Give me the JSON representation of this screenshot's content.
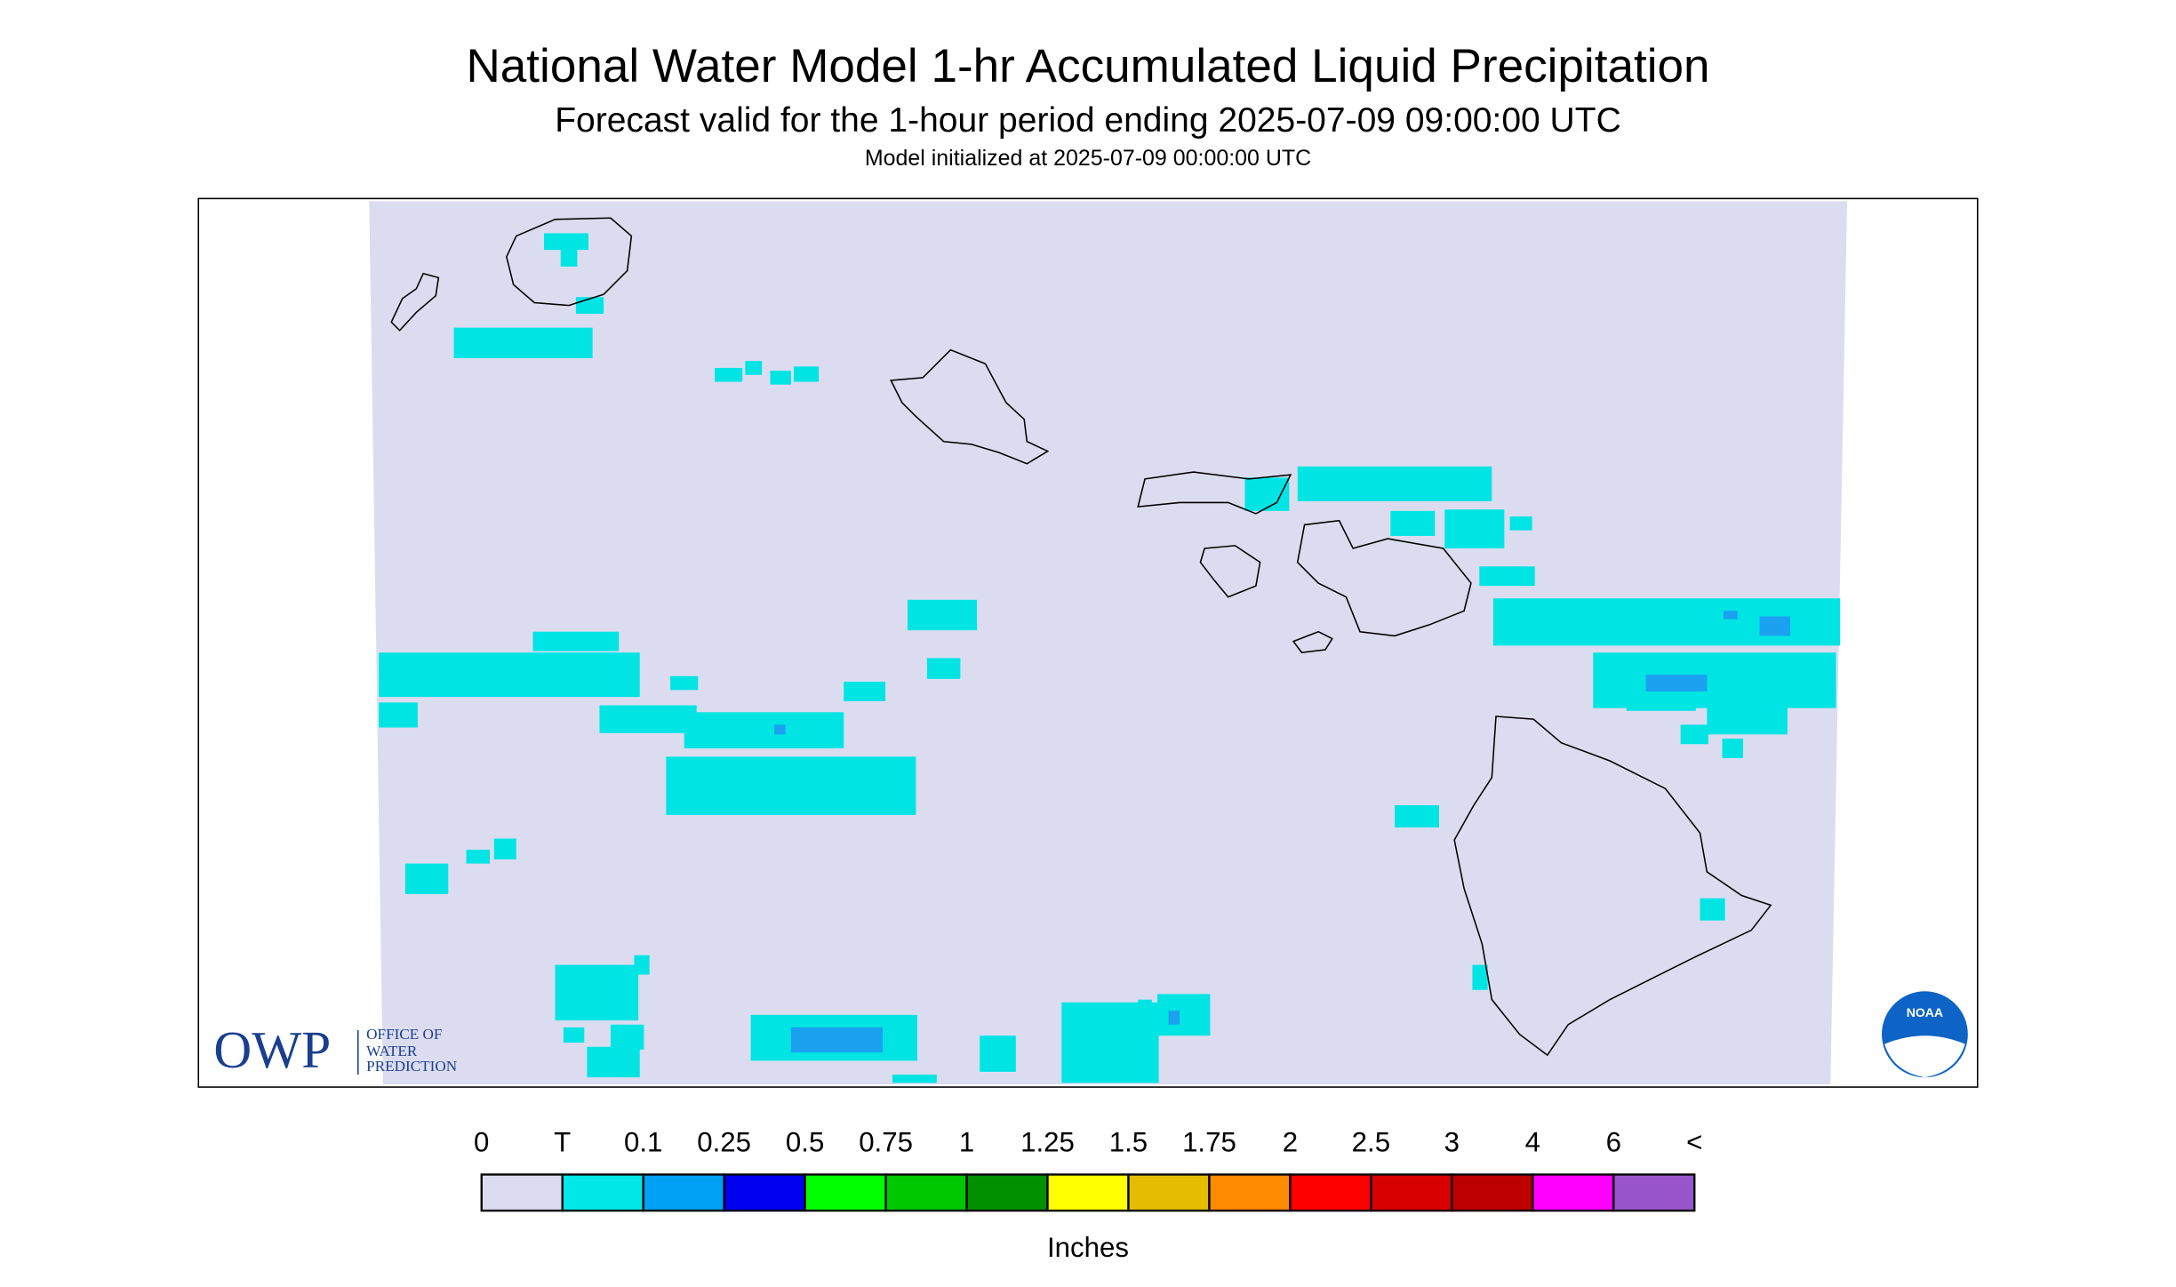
{
  "header": {
    "title": "National Water Model 1-hr Accumulated Liquid Precipitation",
    "subtitle": "Forecast valid for the 1-hour period ending 2025-07-09 09:00:00 UTC",
    "initialized": "Model initialized at 2025-07-09 00:00:00 UTC"
  },
  "legend": {
    "labels": [
      "0",
      "T",
      "0.1",
      "0.25",
      "0.5",
      "0.75",
      "1",
      "1.25",
      "1.5",
      "1.75",
      "2",
      "2.5",
      "3",
      "4",
      "6",
      "<"
    ],
    "colors": [
      "#dcdcf0",
      "#00e8e8",
      "#00a0f5",
      "#0000f0",
      "#00ff00",
      "#00c800",
      "#009000",
      "#ffff00",
      "#e6bc00",
      "#ff8c00",
      "#ff0000",
      "#d80000",
      "#bc0000",
      "#ff00ff",
      "#9955cc"
    ],
    "unit": "Inches"
  },
  "logos": {
    "owp": "OWP",
    "owp_name": [
      "OFFICE OF",
      "WATER",
      "PREDICTION"
    ],
    "noaa": "NOAA"
  }
}
